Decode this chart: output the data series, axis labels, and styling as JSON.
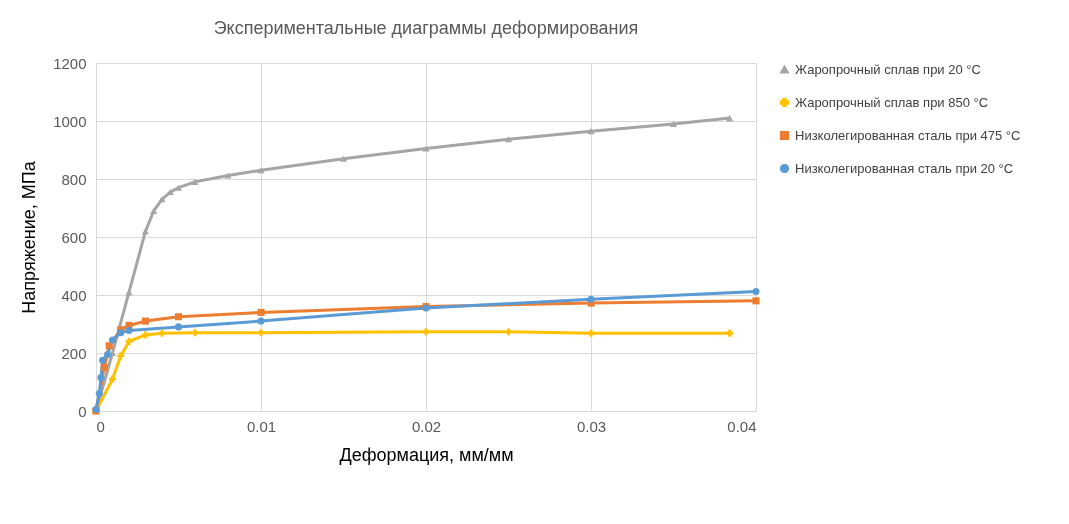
{
  "chart_data": {
    "type": "line",
    "title": "Экспериментальные диаграммы деформирования",
    "xlabel": "Деформация, мм/мм",
    "ylabel": "Напряжение, МПа",
    "xlim": [
      0,
      0.04
    ],
    "xticks": [
      0,
      0.01,
      0.02,
      0.03,
      0.04
    ],
    "ylim": [
      0,
      1200
    ],
    "yticks": [
      0,
      200,
      400,
      600,
      800,
      1000,
      1200
    ],
    "grid": true,
    "legend": "right",
    "series": [
      {
        "name": "Жаропрочный сплав при 20 °C",
        "color": "#a5a5a5",
        "marker": "triangle",
        "x": [
          0,
          0.001,
          0.002,
          0.003,
          0.0035,
          0.004,
          0.0045,
          0.005,
          0.006,
          0.008,
          0.01,
          0.015,
          0.02,
          0.025,
          0.03,
          0.035,
          0.0384
        ],
        "values": [
          0,
          200,
          410,
          620,
          690,
          730,
          755,
          770,
          790,
          812,
          830,
          870,
          905,
          937,
          965,
          990,
          1010
        ]
      },
      {
        "name": "Жаропрочный сплав при 850 °C",
        "color": "#ffc000",
        "marker": "cross",
        "x": [
          0,
          0.001,
          0.0015,
          0.002,
          0.003,
          0.004,
          0.006,
          0.01,
          0.02,
          0.025,
          0.03,
          0.0384
        ],
        "values": [
          0,
          110,
          190,
          240,
          262,
          268,
          270,
          270,
          273,
          273,
          268,
          268
        ]
      },
      {
        "name": "Низколегированная сталь при 475 °C",
        "color": "#ed7d31",
        "marker": "square",
        "x": [
          0,
          0.0005,
          0.0008,
          0.0015,
          0.002,
          0.003,
          0.005,
          0.01,
          0.02,
          0.03,
          0.04
        ],
        "values": [
          0,
          150,
          225,
          280,
          295,
          310,
          325,
          340,
          360,
          372,
          380
        ]
      },
      {
        "name": "Низколегированная сталь при 20 °C",
        "color": "#5b9bd5",
        "marker": "circle",
        "x": [
          0,
          0.0002,
          0.0003,
          0.0004,
          0.0007,
          0.001,
          0.0015,
          0.002,
          0.005,
          0.01,
          0.02,
          0.03,
          0.04
        ],
        "values": [
          5,
          60,
          115,
          175,
          195,
          245,
          270,
          278,
          290,
          310,
          355,
          385,
          412
        ]
      }
    ]
  }
}
